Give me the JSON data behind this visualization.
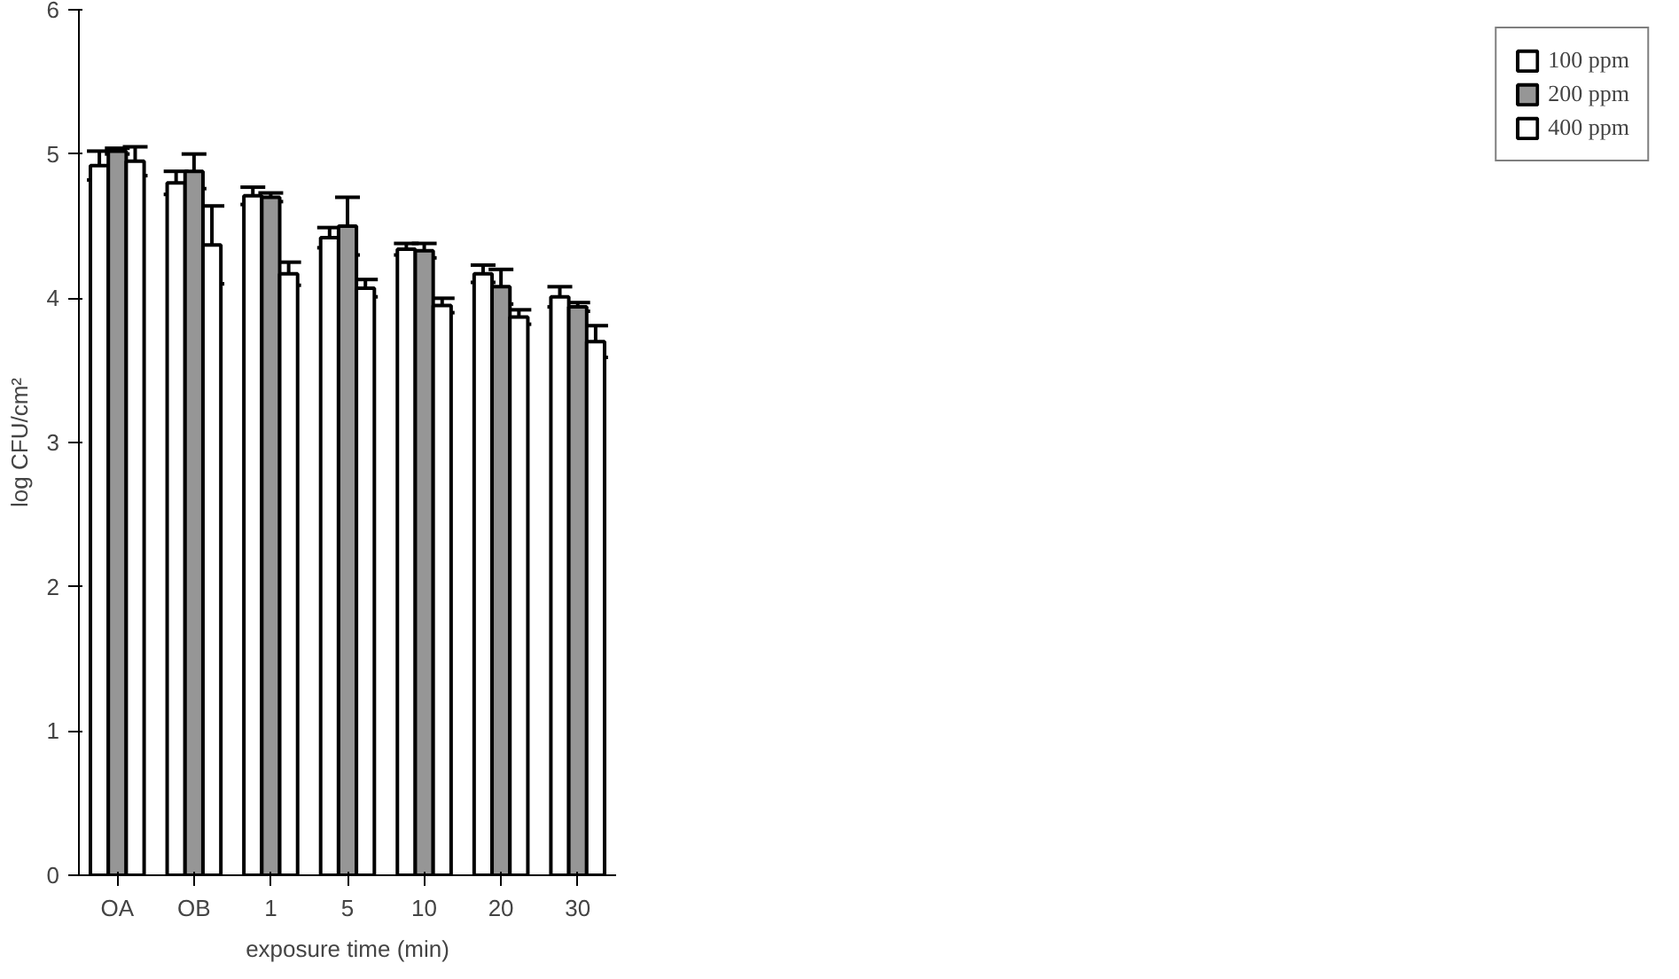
{
  "chart_data": {
    "type": "bar",
    "xlabel": "exposure time (min)",
    "ylabel": "log CFU/cm²",
    "categories": [
      "OA",
      "OB",
      "1",
      "5",
      "10",
      "20",
      "30"
    ],
    "series": [
      {
        "name": "100 ppm",
        "color": "#ffffff",
        "values": [
          4.92,
          4.8,
          4.71,
          4.42,
          4.34,
          4.17,
          4.01
        ],
        "errors": [
          0.1,
          0.08,
          0.06,
          0.07,
          0.04,
          0.06,
          0.07
        ]
      },
      {
        "name": "200 ppm",
        "color": "#969696",
        "values": [
          5.02,
          4.88,
          4.7,
          4.5,
          4.33,
          4.08,
          3.94
        ],
        "errors": [
          0.02,
          0.12,
          0.03,
          0.2,
          0.05,
          0.12,
          0.03
        ]
      },
      {
        "name": "400 ppm",
        "color": "#ffffff",
        "values": [
          4.95,
          4.37,
          4.17,
          4.07,
          3.95,
          3.87,
          3.7
        ],
        "errors": [
          0.1,
          0.27,
          0.08,
          0.06,
          0.05,
          0.05,
          0.11
        ]
      }
    ],
    "ylim": [
      0,
      6
    ],
    "yticks": [
      0,
      1,
      2,
      3,
      4,
      5,
      6
    ],
    "grid": false,
    "legend": "right"
  }
}
